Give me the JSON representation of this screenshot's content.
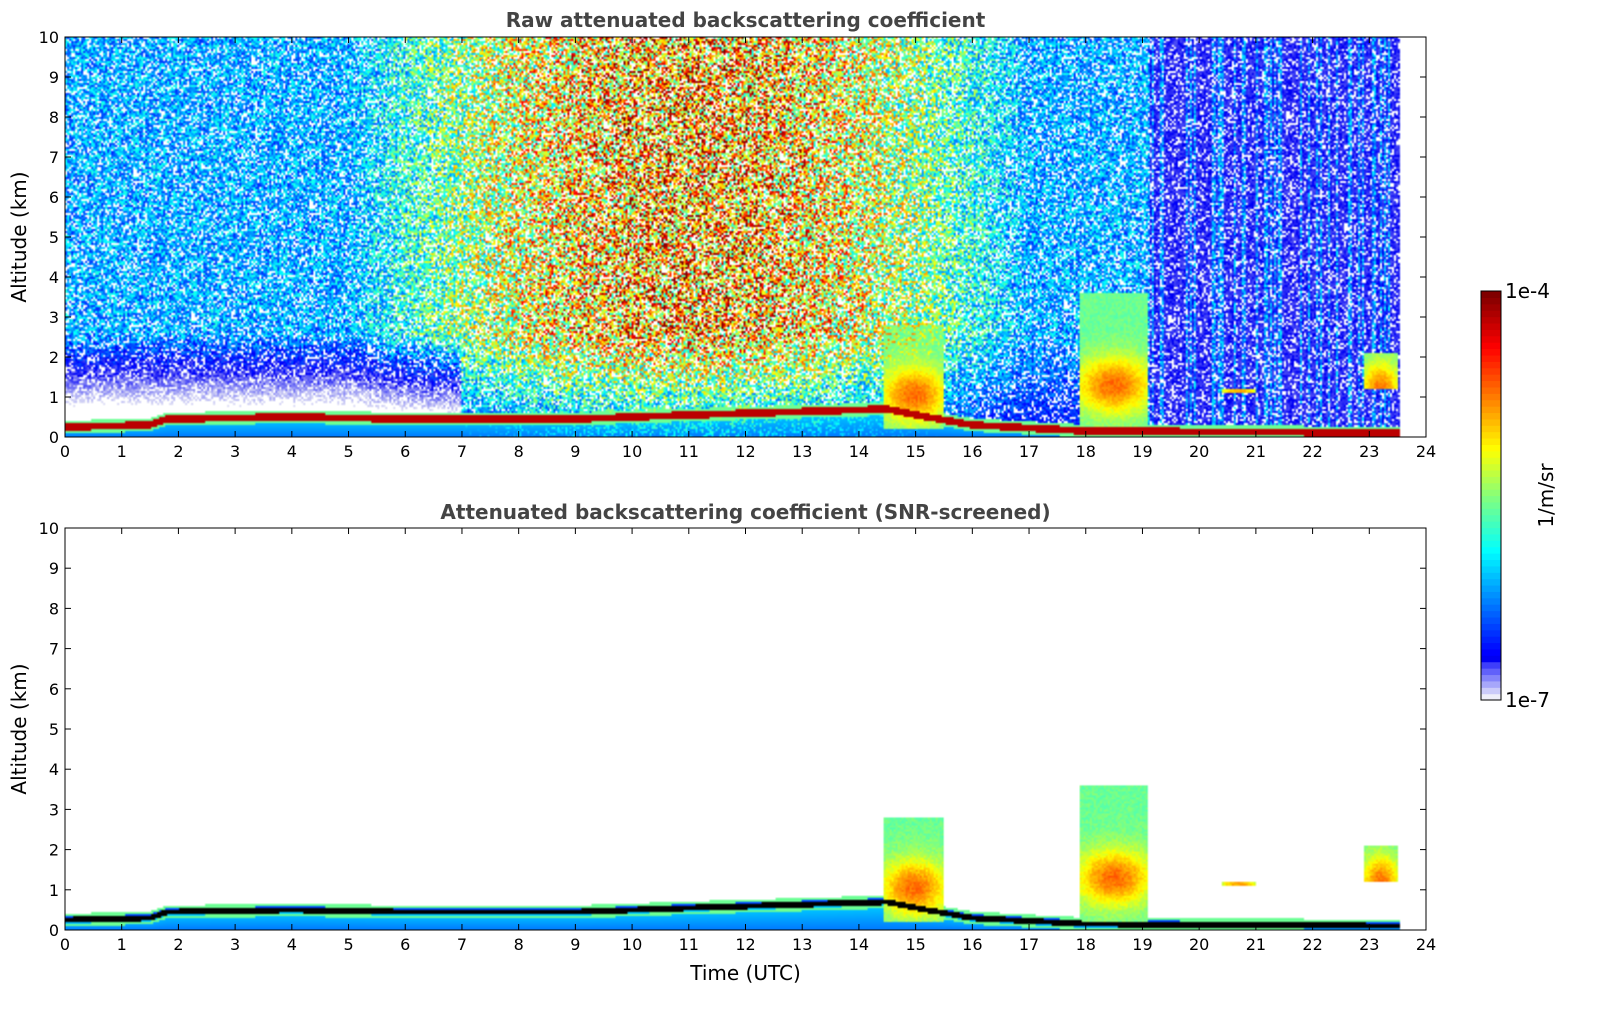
{
  "figure": {
    "colorbar": {
      "label": "1/m/sr",
      "max_label": "1e-4",
      "min_label": "1e-7",
      "scale": "log",
      "range": [
        1e-07,
        0.0001
      ],
      "colormap": "jet",
      "colors": [
        "#ffffff",
        "#d8d8f4",
        "#0000ff",
        "#0080ff",
        "#00ffff",
        "#80ff80",
        "#ffff00",
        "#ff8000",
        "#ff0000",
        "#800000"
      ]
    }
  },
  "chart_data": [
    {
      "type": "heatmap",
      "title": "Raw attenuated backscattering coefficient",
      "xlabel": "",
      "ylabel": "Altitude (km)",
      "xlim": [
        0,
        24
      ],
      "ylim": [
        0,
        10
      ],
      "xticks": [
        "0",
        "1",
        "2",
        "3",
        "4",
        "5",
        "6",
        "7",
        "8",
        "9",
        "10",
        "11",
        "12",
        "13",
        "14",
        "15",
        "16",
        "17",
        "18",
        "19",
        "20",
        "21",
        "22",
        "23",
        "24"
      ],
      "yticks": [
        "0",
        "1",
        "2",
        "3",
        "4",
        "5",
        "6",
        "7",
        "8",
        "9",
        "10"
      ],
      "data_end_time": 23.55,
      "boundary_layer_top_km": [
        [
          0,
          0.25
        ],
        [
          1.5,
          0.3
        ],
        [
          1.8,
          0.45
        ],
        [
          4,
          0.5
        ],
        [
          6,
          0.45
        ],
        [
          9,
          0.45
        ],
        [
          11,
          0.55
        ],
        [
          14.5,
          0.7
        ],
        [
          15,
          0.55
        ],
        [
          16,
          0.3
        ],
        [
          18,
          0.15
        ],
        [
          23.5,
          0.1
        ]
      ],
      "cloud_regions": [
        {
          "t0": 14.45,
          "t1": 15.5,
          "base_km": 0.2,
          "top_km": 2.8
        },
        {
          "t0": 17.9,
          "t1": 19.1,
          "base_km": 0.1,
          "top_km": 3.6
        },
        {
          "t0": 20.4,
          "t1": 21.0,
          "base_km": 1.1,
          "top_km": 1.2
        },
        {
          "t0": 22.9,
          "t1": 23.5,
          "base_km": 1.2,
          "top_km": 2.1
        }
      ]
    },
    {
      "type": "heatmap",
      "title": "Attenuated backscattering coefficient (SNR-screened)",
      "xlabel": "Time (UTC)",
      "ylabel": "Altitude (km)",
      "xlim": [
        0,
        24
      ],
      "ylim": [
        0,
        10
      ],
      "xticks": [
        "0",
        "1",
        "2",
        "3",
        "4",
        "5",
        "6",
        "7",
        "8",
        "9",
        "10",
        "11",
        "12",
        "13",
        "14",
        "15",
        "16",
        "17",
        "18",
        "19",
        "20",
        "21",
        "22",
        "23",
        "24"
      ],
      "yticks": [
        "0",
        "1",
        "2",
        "3",
        "4",
        "5",
        "6",
        "7",
        "8",
        "9",
        "10"
      ],
      "data_end_time": 23.55
    }
  ]
}
